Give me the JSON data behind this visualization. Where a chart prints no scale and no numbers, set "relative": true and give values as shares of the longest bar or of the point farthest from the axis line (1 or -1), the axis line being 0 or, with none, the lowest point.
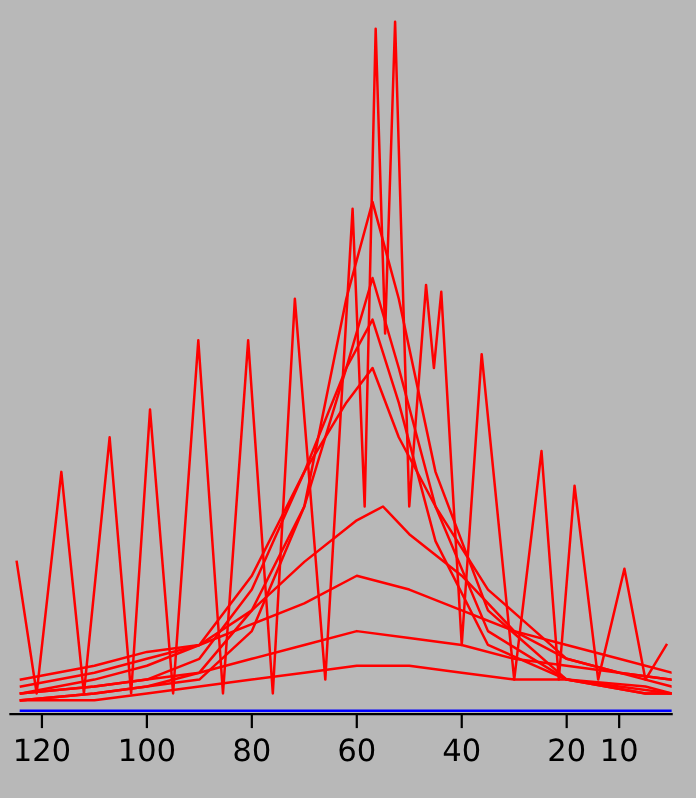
{
  "chart_data": {
    "type": "line",
    "relative": true,
    "xlim": [
      126,
      0
    ],
    "xticks": [
      120,
      100,
      80,
      60,
      40,
      20,
      10
    ],
    "grid": false,
    "legend": false,
    "marker": "none",
    "line_style": "solid",
    "series": [
      {
        "color": "#ff0000",
        "x": [
          124.8,
          121,
          116.3,
          112,
          107.1,
          103,
          99.4,
          95,
          90.2,
          85.5,
          80.7,
          76,
          71.8,
          66,
          60.8,
          58.5,
          56.4,
          54.6,
          52.7,
          50,
          46.8,
          45.3,
          43.9,
          40,
          36.2,
          30,
          24.8,
          21.5,
          18.5,
          14,
          9,
          5,
          1
        ],
        "values": [
          0.22,
          0.03,
          0.35,
          0.03,
          0.4,
          0.03,
          0.44,
          0.03,
          0.54,
          0.03,
          0.54,
          0.03,
          0.6,
          0.05,
          0.73,
          0.3,
          0.99,
          0.55,
          1.0,
          0.3,
          0.62,
          0.5,
          0.61,
          0.1,
          0.52,
          0.05,
          0.38,
          0.05,
          0.33,
          0.05,
          0.21,
          0.05,
          0.1
        ]
      },
      {
        "color": "#ff0000",
        "x": [
          124,
          110,
          100,
          90,
          80,
          70,
          62,
          57,
          52,
          45,
          35,
          20,
          5,
          0
        ],
        "values": [
          0.02,
          0.03,
          0.04,
          0.05,
          0.12,
          0.3,
          0.6,
          0.74,
          0.6,
          0.35,
          0.15,
          0.05,
          0.03,
          0.03
        ]
      },
      {
        "color": "#ff0000",
        "x": [
          124,
          110,
          100,
          90,
          80,
          70,
          62,
          57,
          52,
          45,
          35,
          20,
          5,
          0
        ],
        "values": [
          0.02,
          0.03,
          0.04,
          0.06,
          0.15,
          0.3,
          0.5,
          0.63,
          0.5,
          0.3,
          0.12,
          0.05,
          0.03,
          0.03
        ]
      },
      {
        "color": "#ff0000",
        "x": [
          124,
          110,
          100,
          90,
          80,
          70,
          62,
          57,
          52,
          45,
          35,
          20,
          5,
          0
        ],
        "values": [
          0.03,
          0.04,
          0.05,
          0.08,
          0.18,
          0.35,
          0.5,
          0.57,
          0.45,
          0.25,
          0.1,
          0.05,
          0.04,
          0.03
        ]
      },
      {
        "color": "#ff0000",
        "x": [
          124,
          110,
          100,
          90,
          80,
          70,
          62,
          57,
          52,
          45,
          35,
          20,
          5,
          0
        ],
        "values": [
          0.03,
          0.05,
          0.07,
          0.1,
          0.2,
          0.35,
          0.45,
          0.5,
          0.4,
          0.3,
          0.18,
          0.08,
          0.05,
          0.04
        ]
      },
      {
        "color": "#ff0000",
        "x": [
          124,
          110,
          100,
          90,
          80,
          70,
          60,
          55,
          50,
          40,
          30,
          20,
          10,
          0
        ],
        "values": [
          0.04,
          0.06,
          0.08,
          0.1,
          0.15,
          0.22,
          0.28,
          0.3,
          0.26,
          0.2,
          0.12,
          0.08,
          0.06,
          0.05
        ]
      },
      {
        "color": "#ff0000",
        "x": [
          124,
          110,
          100,
          90,
          80,
          70,
          60,
          50,
          40,
          30,
          20,
          10,
          0
        ],
        "values": [
          0.05,
          0.07,
          0.09,
          0.1,
          0.13,
          0.16,
          0.2,
          0.18,
          0.15,
          0.12,
          0.1,
          0.08,
          0.06
        ]
      },
      {
        "color": "#ff0000",
        "x": [
          124,
          110,
          100,
          90,
          80,
          70,
          60,
          50,
          40,
          30,
          20,
          10,
          0
        ],
        "values": [
          0.03,
          0.04,
          0.05,
          0.06,
          0.08,
          0.1,
          0.12,
          0.11,
          0.1,
          0.08,
          0.07,
          0.06,
          0.05
        ]
      },
      {
        "color": "#ff0000",
        "x": [
          124,
          110,
          100,
          90,
          80,
          70,
          60,
          50,
          40,
          30,
          20,
          10,
          0
        ],
        "values": [
          0.02,
          0.02,
          0.03,
          0.04,
          0.05,
          0.06,
          0.07,
          0.07,
          0.06,
          0.05,
          0.05,
          0.04,
          0.03
        ]
      },
      {
        "color": "#0000ff",
        "x": [
          124,
          100,
          80,
          60,
          40,
          20,
          0
        ],
        "values": [
          0.005,
          0.005,
          0.005,
          0.005,
          0.005,
          0.005,
          0.005
        ]
      }
    ]
  }
}
